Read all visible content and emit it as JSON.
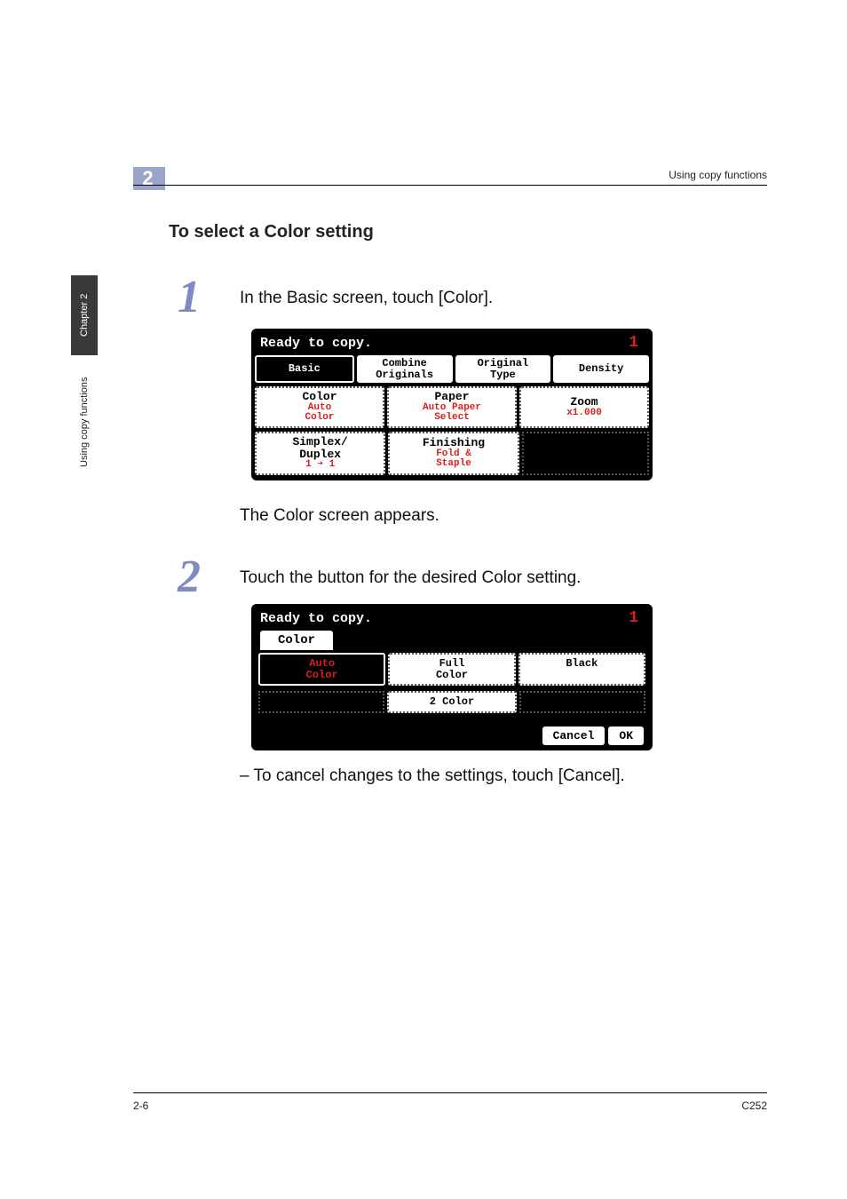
{
  "header": {
    "chapter_num": "2",
    "right_text": "Using copy functions"
  },
  "section_heading": "To select a Color setting",
  "sidebar": {
    "dark": "Chapter 2",
    "light": "Using copy functions"
  },
  "step1": {
    "num": "1",
    "text": "In the Basic screen, touch [Color].",
    "after": "The Color screen appears."
  },
  "step2": {
    "num": "2",
    "text": "Touch the button for the desired Color setting.",
    "cancel": "– To cancel changes to the settings, touch [Cancel]."
  },
  "lcd1": {
    "title": "Ready to copy.",
    "count": "1",
    "tabs": [
      "Basic",
      "Combine\nOriginals",
      "Original\nType",
      "Density"
    ],
    "row1": [
      {
        "top": "Color",
        "bot": "Auto\nColor",
        "bot_color": "#d81f1f"
      },
      {
        "top": "Paper",
        "bot": "Auto Paper\nSelect",
        "bot_color": "#d81f1f"
      },
      {
        "top": "Zoom",
        "bot": "x1.000",
        "bot_color": "#d81f1f",
        "zoom": true
      }
    ],
    "row2_left": {
      "top": "Simplex/\nDuplex",
      "bot": "1 ➔ 1"
    },
    "row2_mid": {
      "top": "Finishing",
      "bot": "Fold &\nStaple"
    }
  },
  "lcd2": {
    "title": "Ready to copy.",
    "count": "1",
    "tab": "Color",
    "row1": [
      {
        "label": "Auto\nColor",
        "sel": true
      },
      {
        "label": "Full\nColor"
      },
      {
        "label": "Black"
      }
    ],
    "row2_mid": "2 Color",
    "cancel": "Cancel",
    "ok": "OK"
  },
  "footer": {
    "left": "2-6",
    "right": "C252"
  },
  "colors": {
    "accent": "#7e8bc1",
    "lcd_red": "#d81f1f",
    "tab_dark": "#3a3a3a"
  }
}
